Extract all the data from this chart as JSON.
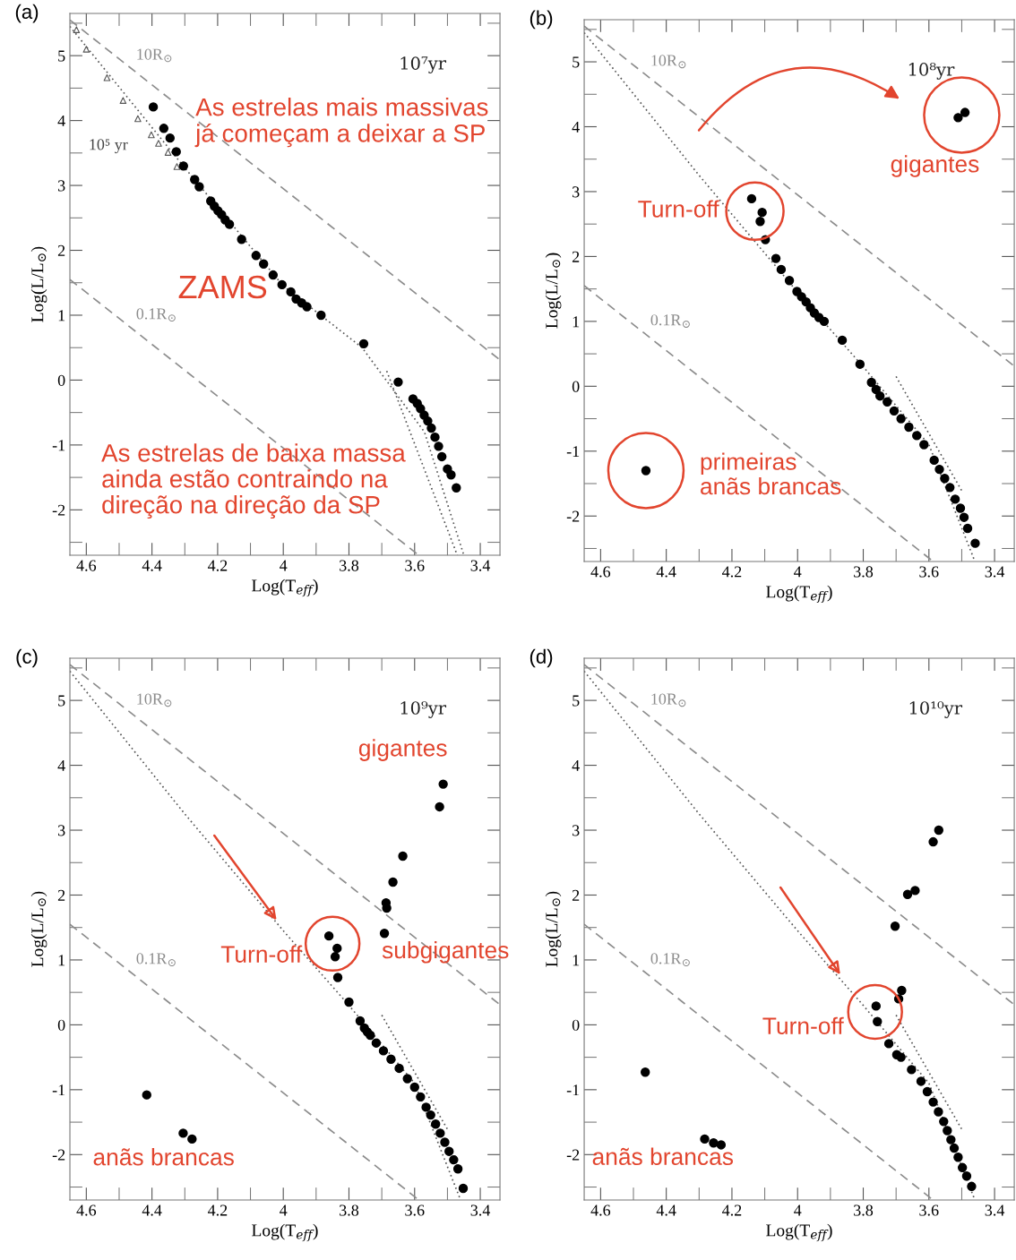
{
  "chart_data": [
    {
      "type": "scatter",
      "title": "(a)",
      "xlabel": "Log(T$_{eff}$)",
      "ylabel": "Log(L/L$_{⊙}$)",
      "xlim": [
        4.65,
        3.34
      ],
      "ylim": [
        -2.7,
        5.65
      ],
      "xticks": [
        4.6,
        4.4,
        4.2,
        4,
        3.8,
        3.6,
        3.4
      ],
      "yticks": [
        -2,
        -1,
        0,
        1,
        2,
        3,
        4,
        5
      ],
      "series": [
        {
          "name": "10R$_{⊙}$",
          "type": "line",
          "line_style": "dashed",
          "color": "#8c8c8c",
          "x": [
            4.65,
            3.34
          ],
          "values": [
            5.55,
            0.31
          ]
        },
        {
          "name": "0.1R$_{⊙}$",
          "type": "line",
          "line_style": "dashed",
          "color": "#8c8c8c",
          "x": [
            4.65,
            3.587
          ],
          "values": [
            1.55,
            -2.7
          ]
        },
        {
          "type": "line",
          "line_style": "dotted",
          "color": "#555555",
          "x": [
            4.65,
            4.3,
            4.0,
            3.76,
            3.57,
            3.45
          ],
          "values": [
            5.45,
            3.27,
            1.45,
            0.5,
            -0.8,
            -2.7
          ]
        },
        {
          "type": "line",
          "line_style": "dotted",
          "color": "#555555",
          "x": [
            3.685,
            3.47
          ],
          "values": [
            0.14,
            -2.7
          ]
        },
        {
          "name": "10⁵ yr",
          "marker": "triangle",
          "color": "#555555",
          "x": [
            4.63,
            4.6,
            4.537,
            4.488,
            4.443,
            4.402,
            4.38,
            4.351,
            4.324
          ],
          "values": [
            5.4,
            5.1,
            4.66,
            4.31,
            4.03,
            3.78,
            3.65,
            3.51,
            3.29
          ]
        },
        {
          "marker": "circle",
          "color": "#000000",
          "x": [
            4.396,
            4.364,
            4.345,
            4.326,
            4.304,
            4.27,
            4.256,
            4.221,
            4.21,
            4.199,
            4.188,
            4.177,
            4.164,
            4.127,
            4.083,
            4.06,
            4.031,
            4.004,
            3.977,
            3.961,
            3.944,
            3.928,
            3.885,
            3.755,
            3.65,
            3.605,
            3.592,
            3.582,
            3.571,
            3.56,
            3.549,
            3.538,
            3.527,
            3.517,
            3.5,
            3.489,
            3.473
          ],
          "values": [
            4.21,
            3.88,
            3.73,
            3.52,
            3.3,
            3.09,
            2.98,
            2.76,
            2.68,
            2.61,
            2.55,
            2.47,
            2.4,
            2.17,
            1.92,
            1.79,
            1.62,
            1.47,
            1.36,
            1.25,
            1.19,
            1.13,
            1.0,
            0.56,
            -0.03,
            -0.29,
            -0.36,
            -0.44,
            -0.54,
            -0.63,
            -0.74,
            -0.88,
            -1.02,
            -1.18,
            -1.37,
            -1.46,
            -1.66
          ]
        }
      ],
      "annotations": [
        "10⁷yr",
        "As estrelas mais massivas\njá começam a deixar a SP",
        "ZAMS",
        "As estrelas de baixa massa\nainda estão contraindo na\ndireção na direção da SP"
      ]
    },
    {
      "type": "scatter",
      "title": "(b)",
      "xlabel": "Log(T$_{eff}$)",
      "ylabel": "Log(L/L$_{⊙}$)",
      "xlim": [
        4.65,
        3.34
      ],
      "ylim": [
        -2.7,
        5.65
      ],
      "xticks": [
        4.6,
        4.4,
        4.2,
        4,
        3.8,
        3.6,
        3.4
      ],
      "yticks": [
        -2,
        -1,
        0,
        1,
        2,
        3,
        4,
        5
      ],
      "series": [
        {
          "name": "10R$_{⊙}$",
          "type": "line",
          "line_style": "dashed",
          "color": "#8c8c8c",
          "x": [
            4.65,
            3.34
          ],
          "values": [
            5.55,
            0.31
          ]
        },
        {
          "name": "0.1R$_{⊙}$",
          "type": "line",
          "line_style": "dashed",
          "color": "#8c8c8c",
          "x": [
            4.65,
            3.587
          ],
          "values": [
            1.55,
            -2.7
          ]
        },
        {
          "type": "line",
          "line_style": "dotted",
          "color": "#555555",
          "x": [
            4.65,
            4.3,
            4.0,
            3.8,
            3.6,
            3.46
          ],
          "values": [
            5.45,
            3.25,
            1.45,
            0.3,
            -0.9,
            -2.7
          ]
        },
        {
          "type": "line",
          "line_style": "dotted",
          "color": "#555555",
          "x": [
            3.7,
            3.5
          ],
          "values": [
            0.15,
            -1.61
          ]
        },
        {
          "marker": "circle",
          "color": "#000000",
          "x": [
            3.511,
            3.49,
            4.14,
            4.108,
            4.114,
            4.098,
            4.066,
            4.05,
            4.025,
            4.002,
            3.988,
            3.974,
            3.961,
            3.949,
            3.935,
            3.919,
            3.864,
            3.81,
            3.775,
            3.761,
            3.749,
            3.727,
            3.706,
            3.685,
            3.661,
            3.637,
            3.615,
            3.584,
            3.568,
            3.552,
            3.536,
            3.52,
            3.504,
            3.493,
            3.482,
            3.459,
            4.462
          ],
          "values": [
            4.14,
            4.22,
            2.89,
            2.68,
            2.54,
            2.26,
            1.97,
            1.8,
            1.63,
            1.46,
            1.38,
            1.3,
            1.21,
            1.13,
            1.06,
            1.0,
            0.71,
            0.34,
            0.06,
            -0.05,
            -0.15,
            -0.24,
            -0.38,
            -0.5,
            -0.63,
            -0.76,
            -0.9,
            -1.14,
            -1.28,
            -1.42,
            -1.56,
            -1.74,
            -1.88,
            -2.02,
            -2.19,
            -2.42,
            -1.3
          ]
        }
      ],
      "annotations": [
        "10⁸yr",
        {
          "text": "Turn-off",
          "x": 4.13,
          "y": 2.7
        },
        {
          "text": "gigantes",
          "x": 3.5,
          "y": 4.18
        },
        {
          "text": "primeiras\nanãs brancas",
          "x": 4.462,
          "y": -1.3
        }
      ]
    },
    {
      "type": "scatter",
      "title": "(c)",
      "xlabel": "Log(T$_{eff}$)",
      "ylabel": "Log(L/L$_{⊙}$)",
      "xlim": [
        4.65,
        3.34
      ],
      "ylim": [
        -2.7,
        5.65
      ],
      "xticks": [
        4.6,
        4.4,
        4.2,
        4,
        3.8,
        3.6,
        3.4
      ],
      "yticks": [
        -2,
        -1,
        0,
        1,
        2,
        3,
        4,
        5
      ],
      "series": [
        {
          "name": "10R$_{⊙}$",
          "type": "line",
          "line_style": "dashed",
          "color": "#8c8c8c",
          "x": [
            4.65,
            3.34
          ],
          "values": [
            5.55,
            0.31
          ]
        },
        {
          "name": "0.1R$_{⊙}$",
          "type": "line",
          "line_style": "dashed",
          "color": "#8c8c8c",
          "x": [
            4.65,
            3.587
          ],
          "values": [
            1.55,
            -2.7
          ]
        },
        {
          "type": "line",
          "line_style": "dotted",
          "color": "#555555",
          "x": [
            4.65,
            4.3,
            4.0,
            3.8,
            3.6,
            3.46
          ],
          "values": [
            5.45,
            3.25,
            1.45,
            0.3,
            -0.9,
            -2.7
          ]
        },
        {
          "type": "line",
          "line_style": "dotted",
          "color": "#555555",
          "x": [
            3.7,
            3.5
          ],
          "values": [
            0.15,
            -1.61
          ]
        },
        {
          "marker": "circle",
          "color": "#000000",
          "x": [
            3.513,
            3.524,
            3.636,
            3.666,
            3.687,
            3.685,
            3.692,
            3.861,
            3.836,
            3.842,
            3.834,
            3.8,
            3.766,
            3.753,
            3.744,
            3.735,
            3.717,
            3.695,
            3.672,
            3.647,
            3.622,
            3.6,
            3.582,
            3.565,
            3.551,
            3.536,
            3.522,
            3.508,
            3.495,
            3.481,
            3.468,
            3.452,
            4.416,
            4.305,
            4.278
          ],
          "values": [
            3.71,
            3.36,
            2.6,
            2.2,
            1.88,
            1.8,
            1.41,
            1.37,
            1.18,
            1.05,
            0.73,
            0.35,
            0.06,
            -0.05,
            -0.11,
            -0.16,
            -0.28,
            -0.4,
            -0.53,
            -0.67,
            -0.83,
            -0.96,
            -1.11,
            -1.27,
            -1.39,
            -1.53,
            -1.67,
            -1.81,
            -1.95,
            -2.08,
            -2.22,
            -2.52,
            -1.08,
            -1.67,
            -1.76
          ]
        }
      ],
      "annotations": [
        "10⁹yr",
        {
          "text": "Turn-off",
          "x": 3.85,
          "y": 1.25
        },
        {
          "text": "gigantes",
          "x": 3.513,
          "y": 3.71
        },
        {
          "text": "subgigantes",
          "x": 3.692,
          "y": 1.41
        },
        {
          "text": "anãs brancas",
          "x": 4.305,
          "y": -1.67
        }
      ]
    },
    {
      "type": "scatter",
      "title": "(d)",
      "xlabel": "Log(T$_{eff}$)",
      "ylabel": "Log(L/L$_{⊙}$)",
      "xlim": [
        4.65,
        3.34
      ],
      "ylim": [
        -2.7,
        5.65
      ],
      "xticks": [
        4.6,
        4.4,
        4.2,
        4,
        3.8,
        3.6,
        3.4
      ],
      "yticks": [
        -2,
        -1,
        0,
        1,
        2,
        3,
        4,
        5
      ],
      "series": [
        {
          "name": "10R$_{⊙}$",
          "type": "line",
          "line_style": "dashed",
          "color": "#8c8c8c",
          "x": [
            4.65,
            3.34
          ],
          "values": [
            5.55,
            0.31
          ]
        },
        {
          "name": "0.1R$_{⊙}$",
          "type": "line",
          "line_style": "dashed",
          "color": "#8c8c8c",
          "x": [
            4.65,
            3.587
          ],
          "values": [
            1.55,
            -2.7
          ]
        },
        {
          "type": "line",
          "line_style": "dotted",
          "color": "#555555",
          "x": [
            4.65,
            4.3,
            4.0,
            3.8,
            3.6,
            3.46
          ],
          "values": [
            5.45,
            3.25,
            1.45,
            0.3,
            -0.9,
            -2.7
          ]
        },
        {
          "type": "line",
          "line_style": "dotted",
          "color": "#555555",
          "x": [
            3.7,
            3.5
          ],
          "values": [
            0.15,
            -1.61
          ]
        },
        {
          "marker": "circle",
          "color": "#000000",
          "x": [
            3.57,
            3.587,
            3.665,
            3.642,
            3.703,
            3.683,
            3.692,
            3.761,
            3.757,
            3.722,
            3.698,
            3.685,
            3.653,
            3.624,
            3.605,
            3.587,
            3.571,
            3.555,
            3.544,
            3.533,
            3.523,
            3.511,
            3.498,
            3.485,
            3.47,
            4.464,
            4.283,
            4.256,
            4.233
          ],
          "values": [
            3.0,
            2.82,
            2.01,
            2.07,
            1.52,
            0.53,
            0.4,
            0.29,
            0.05,
            -0.29,
            -0.46,
            -0.5,
            -0.69,
            -0.87,
            -1.03,
            -1.19,
            -1.34,
            -1.49,
            -1.63,
            -1.77,
            -1.9,
            -2.04,
            -2.2,
            -2.33,
            -2.49,
            -0.73,
            -1.76,
            -1.82,
            -1.85
          ]
        }
      ],
      "annotations": [
        "10¹⁰yr",
        {
          "text": "Turn-off",
          "x": 3.764,
          "y": 0.2
        },
        {
          "text": "anãs brancas",
          "x": 4.283,
          "y": -1.76
        }
      ]
    }
  ]
}
